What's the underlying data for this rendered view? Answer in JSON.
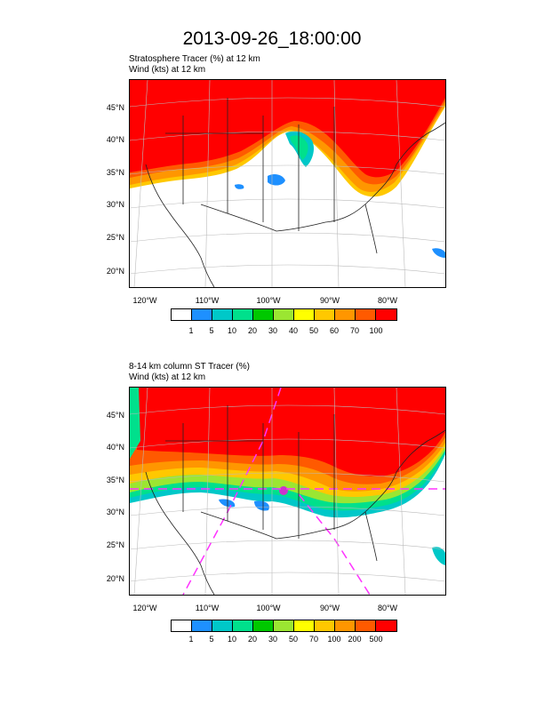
{
  "title": "2013-09-26_18:00:00",
  "panel1": {
    "line1": "Stratosphere Tracer   (%)     at   12 km",
    "line2": "Wind   (kts)     at   12 km",
    "lat_labels": [
      "45°N",
      "40°N",
      "35°N",
      "30°N",
      "25°N",
      "20°N"
    ],
    "lon_labels": [
      "120°W",
      "110°W",
      "100°W",
      "90°W",
      "80°W"
    ],
    "colorbar_labels": [
      "1",
      "5",
      "10",
      "20",
      "30",
      "40",
      "50",
      "60",
      "70",
      "100"
    ]
  },
  "panel2": {
    "line1": "8-14 km column ST Tracer   (%)",
    "line2": "Wind   (kts)     at   12 km",
    "lat_labels": [
      "45°N",
      "40°N",
      "35°N",
      "30°N",
      "25°N",
      "20°N"
    ],
    "lon_labels": [
      "120°W",
      "110°W",
      "100°W",
      "90°W",
      "80°W"
    ],
    "colorbar_labels": [
      "1",
      "5",
      "10",
      "20",
      "30",
      "50",
      "70",
      "100",
      "200",
      "500"
    ]
  },
  "colors": [
    "#ffffff",
    "#1e90ff",
    "#00c8c8",
    "#00e08c",
    "#00c800",
    "#9be632",
    "#ffff00",
    "#ffc800",
    "#ff9600",
    "#ff5a00",
    "#ff0000"
  ]
}
